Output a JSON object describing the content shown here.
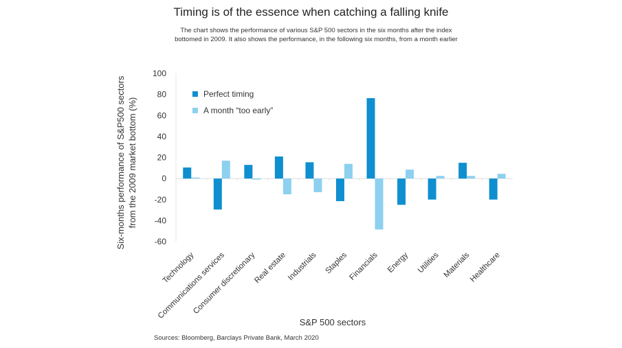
{
  "chart_data": {
    "type": "bar",
    "title": "Timing is of the essence when catching a falling knife",
    "subtitle_lines": [
      "The chart shows the performance of various S&P 500 sectors in the six months after the index",
      "bottomed in 2009. It also shows the performance, in the following six months, from a month earlier"
    ],
    "xlabel": "S&P 500 sectors",
    "ylabel_lines": [
      "Six-months performance of S&P500 sectors",
      "from the 2009 market bottom (%)"
    ],
    "ylim": [
      -60,
      100
    ],
    "yticks": [
      100,
      80,
      60,
      40,
      20,
      0,
      -20,
      -40,
      -60
    ],
    "grid": false,
    "legend_position": "top-left",
    "categories": [
      "Technology",
      "Communications services",
      "Consumer discretionary",
      "Real estate",
      "Industrials",
      "Staples",
      "Financials",
      "Energy",
      "Utilities",
      "Materials",
      "Healthcare"
    ],
    "series": [
      {
        "name": "Perfect timing",
        "color": "#0f8fd0",
        "values": [
          10.5,
          -29.5,
          13,
          21,
          15.5,
          -21.5,
          76.5,
          -25,
          -20,
          15,
          -20
        ]
      },
      {
        "name": "A month “too early”",
        "color": "#8dd0f0",
        "values": [
          1,
          17,
          -1,
          -15,
          -13,
          14,
          -48.5,
          8.5,
          2.5,
          2.5,
          4.5
        ]
      }
    ],
    "source": "Sources: Bloomberg, Barclays Private Bank, March 2020"
  }
}
